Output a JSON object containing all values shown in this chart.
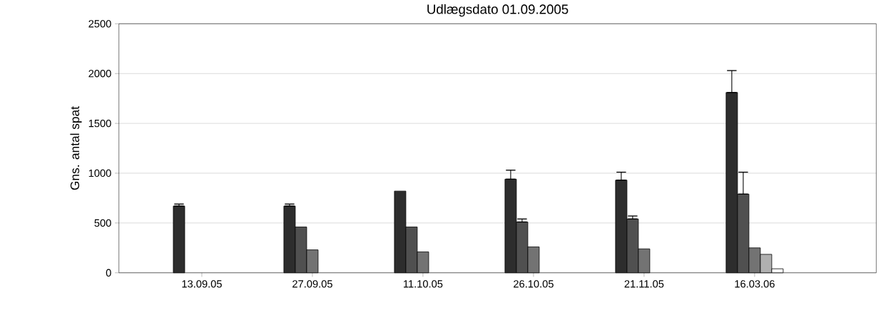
{
  "chart_data": {
    "type": "bar",
    "title": "Udlægsdato 01.09.2005",
    "ylabel": "Gns. antal spat",
    "categories": [
      "13.09.05",
      "27.09.05",
      "11.10.05",
      "26.10.05",
      "21.11.05",
      "16.03.06"
    ],
    "series": [
      {
        "color": "#2d2d2d",
        "values": [
          670,
          670,
          820,
          940,
          930,
          1810
        ],
        "errors": [
          [
            670,
            690
          ],
          [
            670,
            690
          ],
          null,
          [
            940,
            1030
          ],
          [
            930,
            1010
          ],
          [
            1810,
            2030
          ]
        ]
      },
      {
        "color": "#505050",
        "values": [
          null,
          460,
          460,
          510,
          540,
          790
        ],
        "errors": [
          null,
          null,
          null,
          [
            510,
            540
          ],
          [
            540,
            570
          ],
          [
            790,
            1010
          ]
        ]
      },
      {
        "color": "#737373",
        "values": [
          null,
          230,
          210,
          260,
          240,
          250
        ]
      },
      {
        "color": "#b0b0b0",
        "values": [
          null,
          null,
          null,
          null,
          null,
          185
        ]
      },
      {
        "color": "#ffffff",
        "values": [
          null,
          null,
          null,
          null,
          null,
          40
        ]
      }
    ],
    "ylim": [
      0,
      2500
    ],
    "yticks": [
      0,
      500,
      1000,
      1500,
      2000,
      2500
    ],
    "grid": "y"
  }
}
